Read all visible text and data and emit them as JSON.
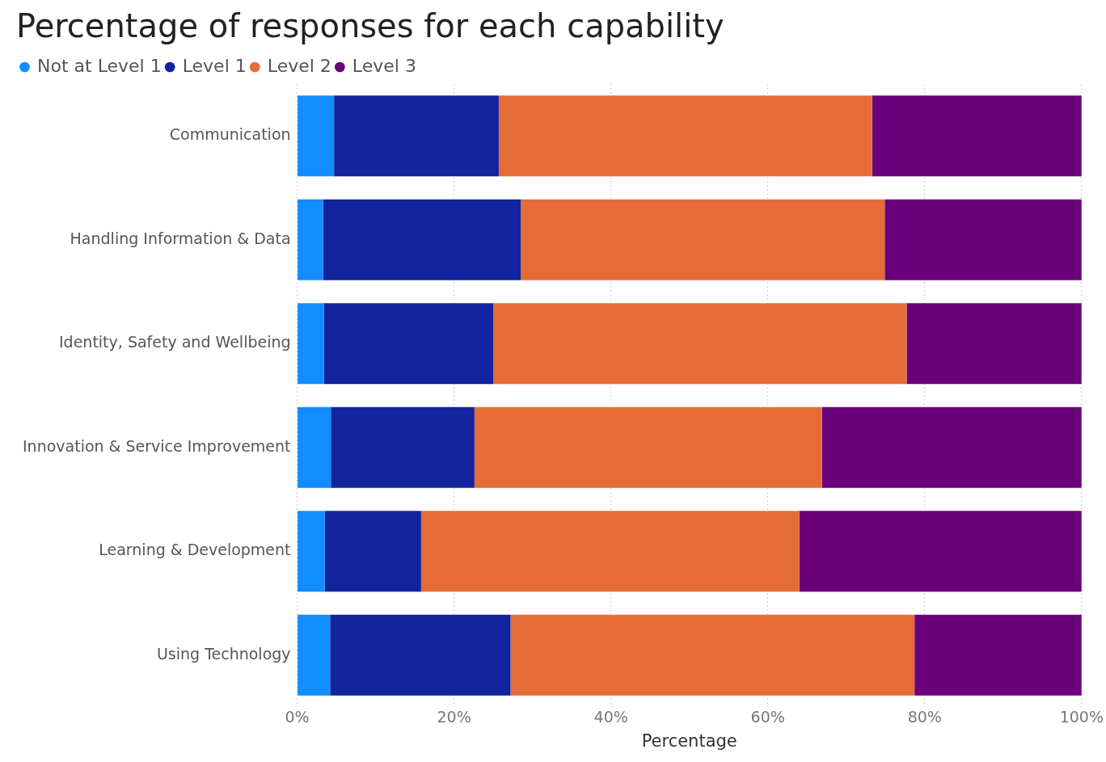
{
  "chart_data": {
    "type": "bar",
    "title": "Percentage of responses for each capability",
    "xlabel": "Percentage",
    "orientation": "horizontal",
    "stacked": true,
    "legend": "top left",
    "grid": "x",
    "categories": [
      "Communication",
      "Handling Information & Data",
      "Identity, Safety and Wellbeing",
      "Innovation & Service Improvement",
      "Learning & Development",
      "Using Technology"
    ],
    "xlim": [
      0,
      100
    ],
    "xticks": [
      {
        "value": 0,
        "label": "0%"
      },
      {
        "value": 20,
        "label": "20%"
      },
      {
        "value": 40,
        "label": "40%"
      },
      {
        "value": 60,
        "label": "60%"
      },
      {
        "value": 80,
        "label": "80%"
      },
      {
        "value": 100,
        "label": "100%"
      }
    ],
    "series": [
      {
        "name": "Not at Level 1",
        "color": "#118dff",
        "values": [
          4.7,
          3.3,
          3.4,
          4.3,
          3.5,
          4.2
        ]
      },
      {
        "name": "Level 1",
        "color": "#12239e",
        "values": [
          21.0,
          25.2,
          21.6,
          18.3,
          12.3,
          23.0
        ]
      },
      {
        "name": "Level 2",
        "color": "#e66c37",
        "values": [
          47.6,
          46.4,
          52.7,
          44.3,
          48.2,
          51.5
        ]
      },
      {
        "name": "Level 3",
        "color": "#6b007b",
        "values": [
          26.7,
          25.1,
          22.3,
          33.1,
          36.0,
          21.3
        ]
      }
    ]
  }
}
